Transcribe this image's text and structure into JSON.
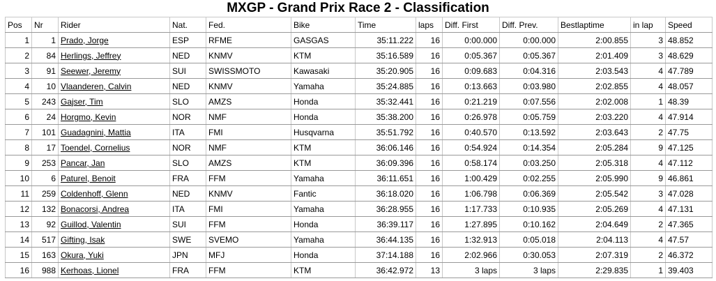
{
  "title": "MXGP - Grand Prix Race 2 - Classification",
  "columns": [
    "Pos",
    "Nr",
    "Rider",
    "Nat.",
    "Fed.",
    "Bike",
    "Time",
    "laps",
    "Diff. First",
    "Diff. Prev.",
    "Bestlaptime",
    "in lap",
    "Speed"
  ],
  "rows": [
    [
      "1",
      "1",
      "Prado, Jorge",
      "ESP",
      "RFME",
      "GASGAS",
      "35:11.222",
      "16",
      "0:00.000",
      "0:00.000",
      "2:00.855",
      "3",
      "48.852"
    ],
    [
      "2",
      "84",
      "Herlings, Jeffrey",
      "NED",
      "KNMV",
      "KTM",
      "35:16.589",
      "16",
      "0:05.367",
      "0:05.367",
      "2:01.409",
      "3",
      "48.629"
    ],
    [
      "3",
      "91",
      "Seewer, Jeremy",
      "SUI",
      "SWISSMOTO",
      "Kawasaki",
      "35:20.905",
      "16",
      "0:09.683",
      "0:04.316",
      "2:03.543",
      "4",
      "47.789"
    ],
    [
      "4",
      "10",
      "Vlaanderen, Calvin",
      "NED",
      "KNMV",
      "Yamaha",
      "35:24.885",
      "16",
      "0:13.663",
      "0:03.980",
      "2:02.855",
      "4",
      "48.057"
    ],
    [
      "5",
      "243",
      "Gajser, Tim",
      "SLO",
      "AMZS",
      "Honda",
      "35:32.441",
      "16",
      "0:21.219",
      "0:07.556",
      "2:02.008",
      "1",
      "48.39"
    ],
    [
      "6",
      "24",
      "Horgmo, Kevin",
      "NOR",
      "NMF",
      "Honda",
      "35:38.200",
      "16",
      "0:26.978",
      "0:05.759",
      "2:03.220",
      "4",
      "47.914"
    ],
    [
      "7",
      "101",
      "Guadagnini, Mattia",
      "ITA",
      "FMI",
      "Husqvarna",
      "35:51.792",
      "16",
      "0:40.570",
      "0:13.592",
      "2:03.643",
      "2",
      "47.75"
    ],
    [
      "8",
      "17",
      "Toendel, Cornelius",
      "NOR",
      "NMF",
      "KTM",
      "36:06.146",
      "16",
      "0:54.924",
      "0:14.354",
      "2:05.284",
      "9",
      "47.125"
    ],
    [
      "9",
      "253",
      "Pancar, Jan",
      "SLO",
      "AMZS",
      "KTM",
      "36:09.396",
      "16",
      "0:58.174",
      "0:03.250",
      "2:05.318",
      "4",
      "47.112"
    ],
    [
      "10",
      "6",
      "Paturel, Benoit",
      "FRA",
      "FFM",
      "Yamaha",
      "36:11.651",
      "16",
      "1:00.429",
      "0:02.255",
      "2:05.990",
      "9",
      "46.861"
    ],
    [
      "11",
      "259",
      "Coldenhoff, Glenn",
      "NED",
      "KNMV",
      "Fantic",
      "36:18.020",
      "16",
      "1:06.798",
      "0:06.369",
      "2:05.542",
      "3",
      "47.028"
    ],
    [
      "12",
      "132",
      "Bonacorsi, Andrea",
      "ITA",
      "FMI",
      "Yamaha",
      "36:28.955",
      "16",
      "1:17.733",
      "0:10.935",
      "2:05.269",
      "4",
      "47.131"
    ],
    [
      "13",
      "92",
      "Guillod, Valentin",
      "SUI",
      "FFM",
      "Honda",
      "36:39.117",
      "16",
      "1:27.895",
      "0:10.162",
      "2:04.649",
      "2",
      "47.365"
    ],
    [
      "14",
      "517",
      "Gifting, Isak",
      "SWE",
      "SVEMO",
      "Yamaha",
      "36:44.135",
      "16",
      "1:32.913",
      "0:05.018",
      "2:04.113",
      "4",
      "47.57"
    ],
    [
      "15",
      "163",
      "Okura, Yuki",
      "JPN",
      "MFJ",
      "Honda",
      "37:14.188",
      "16",
      "2:02.966",
      "0:30.053",
      "2:07.319",
      "2",
      "46.372"
    ],
    [
      "16",
      "988",
      "Kerhoas, Lionel",
      "FRA",
      "FFM",
      "KTM",
      "36:42.972",
      "13",
      "3 laps",
      "3 laps",
      "2:29.835",
      "1",
      "39.403"
    ]
  ]
}
